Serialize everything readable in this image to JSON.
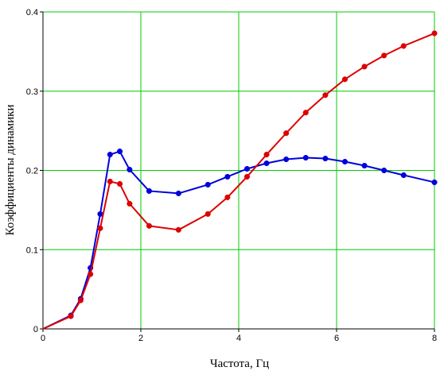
{
  "chart_data": {
    "type": "line",
    "title": "",
    "xlabel": "Частота, Гц",
    "ylabel": "Коэффициенты динамики",
    "xlim": [
      0,
      8
    ],
    "ylim": [
      0,
      0.4
    ],
    "xticks": [
      0,
      2,
      4,
      6,
      8
    ],
    "xtick_labels": [
      "0",
      "2",
      "4",
      "6",
      "8"
    ],
    "yticks": [
      0,
      0.1,
      0.2,
      0.3,
      0.4
    ],
    "ytick_labels": [
      "0",
      "0.1",
      "0.2",
      "0.3",
      "0.4"
    ],
    "grid": true,
    "legend": "none",
    "colors": {
      "grid": "#00cc00",
      "axis": "#000000",
      "blue": "#0000dd",
      "red": "#dd0000"
    },
    "series": [
      {
        "color": "#0000dd",
        "x": [
          0,
          0.57,
          0.77,
          0.97,
          1.17,
          1.37,
          1.57,
          1.77,
          2.17,
          2.77,
          3.37,
          3.77,
          4.17,
          4.57,
          4.97,
          5.37,
          5.77,
          6.17,
          6.57,
          6.97,
          7.37,
          8.0
        ],
        "y": [
          0.0,
          0.017,
          0.038,
          0.077,
          0.145,
          0.22,
          0.224,
          0.201,
          0.174,
          0.171,
          0.182,
          0.192,
          0.202,
          0.209,
          0.214,
          0.216,
          0.215,
          0.211,
          0.206,
          0.2,
          0.194,
          0.185
        ]
      },
      {
        "color": "#dd0000",
        "x": [
          0,
          0.57,
          0.77,
          0.97,
          1.17,
          1.37,
          1.57,
          1.77,
          2.17,
          2.77,
          3.37,
          3.77,
          4.17,
          4.57,
          4.97,
          5.37,
          5.77,
          6.17,
          6.57,
          6.97,
          7.37,
          8.0
        ],
        "y": [
          0.0,
          0.016,
          0.036,
          0.069,
          0.127,
          0.186,
          0.183,
          0.158,
          0.13,
          0.125,
          0.145,
          0.166,
          0.192,
          0.22,
          0.247,
          0.273,
          0.295,
          0.315,
          0.331,
          0.345,
          0.357,
          0.373
        ]
      }
    ]
  }
}
